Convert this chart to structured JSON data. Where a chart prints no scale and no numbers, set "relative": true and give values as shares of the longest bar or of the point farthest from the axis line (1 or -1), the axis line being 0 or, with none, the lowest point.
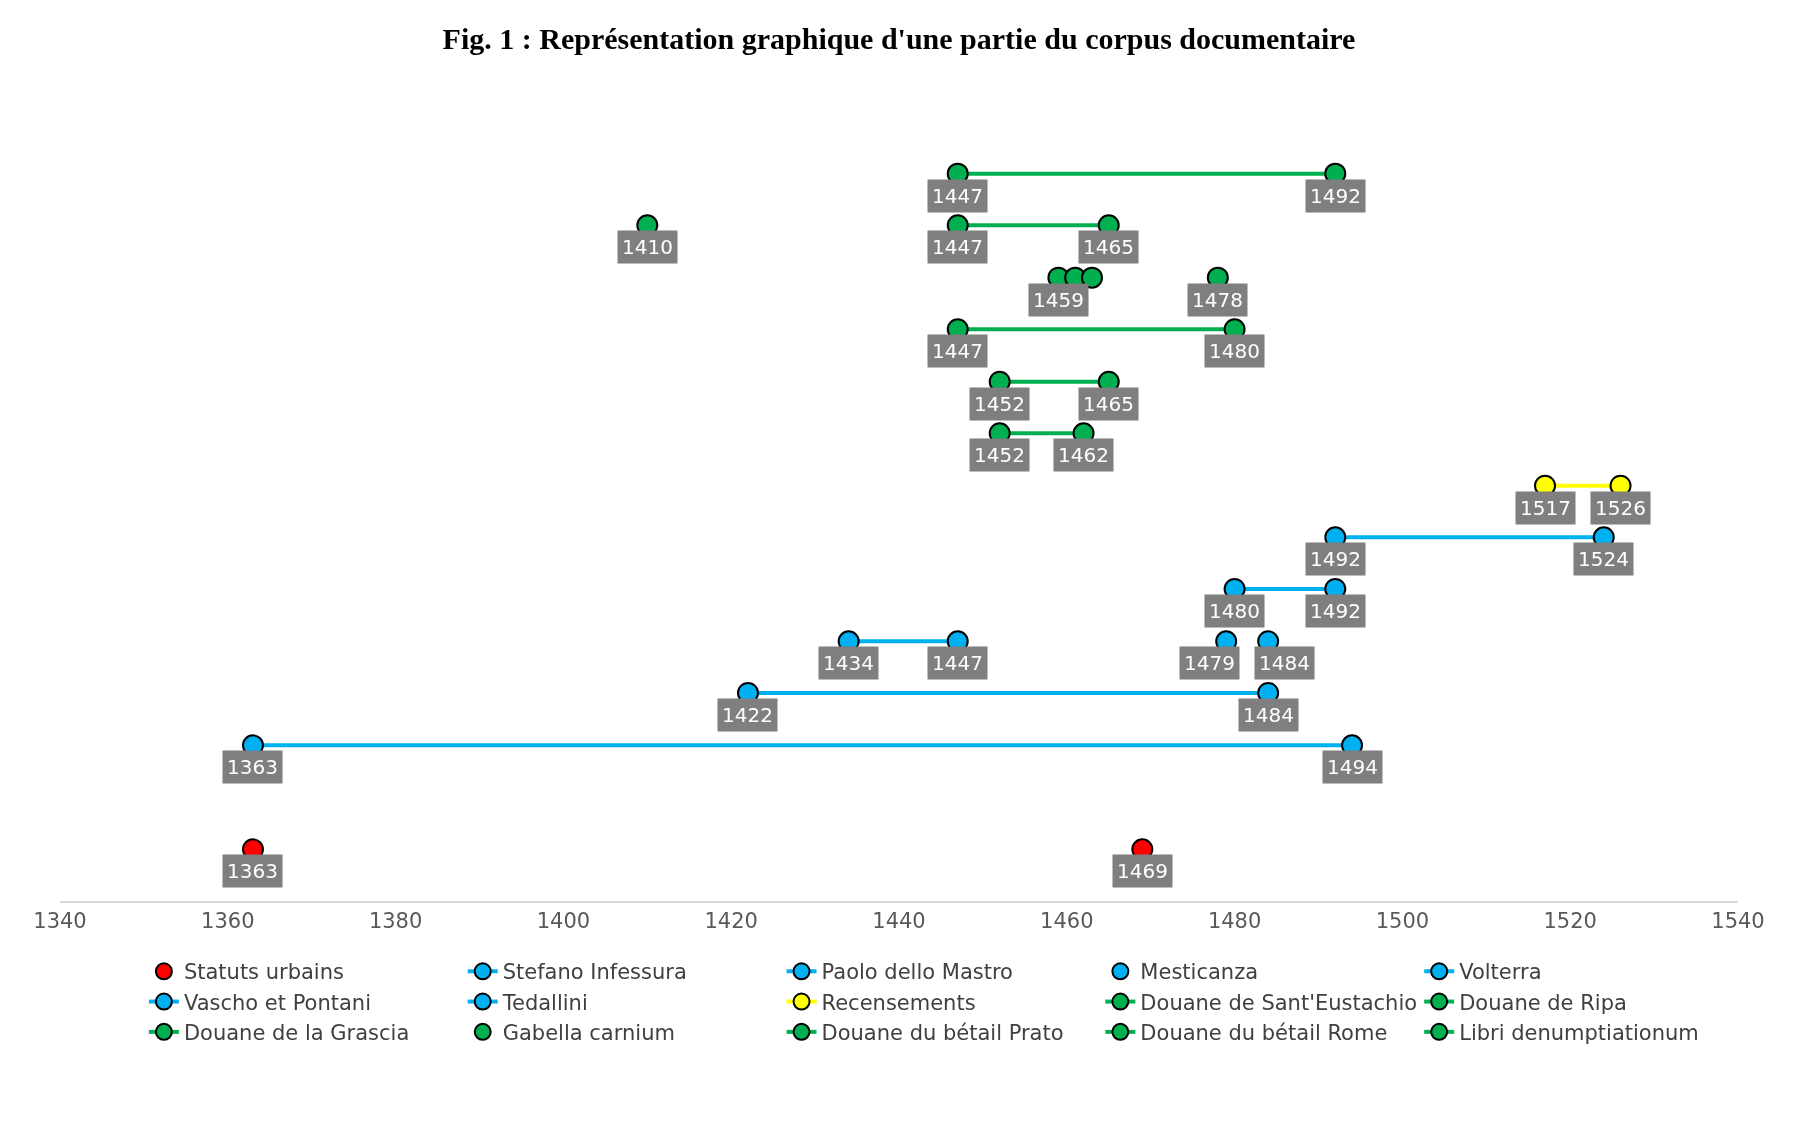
{
  "chart_data": {
    "type": "scatter",
    "title": "Fig. 1 : Représentation graphique d'une partie du corpus documentaire",
    "relative": true,
    "xlim": [
      1340,
      1540
    ],
    "xticks": [
      1340,
      1360,
      1380,
      1400,
      1420,
      1440,
      1460,
      1480,
      1500,
      1520,
      1540
    ],
    "grid": false,
    "legend": "bottom",
    "marker": "circle",
    "line_style": "solid",
    "tick_labels": "x",
    "series": [
      {
        "name": "Statuts urbains",
        "color": "#ff0000",
        "x": [
          1363,
          1469
        ],
        "values": [
          0.071,
          0.071
        ]
      },
      {
        "name": "Stefano Infessura",
        "type": "line",
        "color": "#00b0f0",
        "x": [
          1363,
          1494
        ],
        "values": [
          0.214,
          0.214
        ]
      },
      {
        "name": "Paolo dello Mastro",
        "type": "line",
        "color": "#00b0f0",
        "x": [
          1422,
          1484
        ],
        "values": [
          0.286,
          0.286
        ]
      },
      {
        "name": "Mesticanza",
        "color": "#00b0f0",
        "x": [
          1479,
          1484
        ],
        "values": [
          0.357,
          0.357
        ]
      },
      {
        "name": "Volterra",
        "type": "line",
        "color": "#00b0f0",
        "x": [
          1434,
          1447
        ],
        "values": [
          0.357,
          0.357
        ]
      },
      {
        "name": "Vascho et Pontani",
        "type": "line",
        "color": "#00b0f0",
        "x": [
          1480,
          1492
        ],
        "values": [
          0.429,
          0.429
        ]
      },
      {
        "name": "Tedallini",
        "type": "line",
        "color": "#00b0f0",
        "x": [
          1492,
          1524
        ],
        "values": [
          0.5,
          0.5
        ]
      },
      {
        "name": "Recensements",
        "type": "line",
        "color": "#ffff00",
        "x": [
          1517,
          1526
        ],
        "values": [
          0.571,
          0.571
        ]
      },
      {
        "name": "Douane de Sant'Eustachio",
        "type": "line",
        "color": "#00b050",
        "x": [
          1452,
          1462
        ],
        "values": [
          0.643,
          0.643
        ]
      },
      {
        "name": "Douane de Ripa",
        "type": "line",
        "color": "#00b050",
        "x": [
          1452,
          1465
        ],
        "values": [
          0.714,
          0.714
        ]
      },
      {
        "name": "Douane de la Grascia",
        "type": "line",
        "color": "#00b050",
        "x": [
          1447,
          1480
        ],
        "values": [
          0.786,
          0.786
        ]
      },
      {
        "name": "Gabella carnium",
        "color": "#00b050",
        "x": [
          1410,
          1459,
          1461,
          1463,
          1478
        ],
        "values": [
          0.929,
          0.857,
          0.857,
          0.857,
          0.857
        ]
      },
      {
        "name": "Douane du bétail Prato",
        "type": "line",
        "color": "#00b050",
        "x": [
          1447,
          1465
        ],
        "values": [
          0.929,
          0.929
        ]
      },
      {
        "name": "Douane du bétail Rome",
        "type": "line",
        "color": "#00b050",
        "x": [
          1447,
          1492
        ],
        "values": [
          1,
          1
        ]
      },
      {
        "name": "Libri denumptiationum",
        "type": "line",
        "color": "#00b050"
      }
    ],
    "annotations": [
      {
        "text": "1363",
        "x": 1363,
        "y": 0.071
      },
      {
        "text": "1469",
        "x": 1469,
        "y": 0.071
      },
      {
        "text": "1363",
        "x": 1363,
        "y": 0.214
      },
      {
        "text": "1494",
        "x": 1494,
        "y": 0.214
      },
      {
        "text": "1422",
        "x": 1422,
        "y": 0.286
      },
      {
        "text": "1484",
        "x": 1484,
        "y": 0.286
      },
      {
        "text": "1479",
        "x": 1479,
        "y": 0.357
      },
      {
        "text": "1484",
        "x": 1484,
        "y": 0.357
      },
      {
        "text": "1434",
        "x": 1434,
        "y": 0.357
      },
      {
        "text": "1447",
        "x": 1447,
        "y": 0.357
      },
      {
        "text": "1480",
        "x": 1480,
        "y": 0.429
      },
      {
        "text": "1492",
        "x": 1492,
        "y": 0.429
      },
      {
        "text": "1492",
        "x": 1492,
        "y": 0.5
      },
      {
        "text": "1524",
        "x": 1524,
        "y": 0.5
      },
      {
        "text": "1517",
        "x": 1517,
        "y": 0.571
      },
      {
        "text": "1526",
        "x": 1526,
        "y": 0.571
      },
      {
        "text": "1452",
        "x": 1452,
        "y": 0.643
      },
      {
        "text": "1462",
        "x": 1462,
        "y": 0.643
      },
      {
        "text": "1452",
        "x": 1452,
        "y": 0.714
      },
      {
        "text": "1465",
        "x": 1465,
        "y": 0.714
      },
      {
        "text": "1447",
        "x": 1447,
        "y": 0.786
      },
      {
        "text": "1480",
        "x": 1480,
        "y": 0.786
      },
      {
        "text": "1410",
        "x": 1410,
        "y": 0.929
      },
      {
        "text": "1459",
        "x": 1459,
        "y": 0.857
      },
      {
        "text": "1478",
        "x": 1478,
        "y": 0.857
      },
      {
        "text": "1447",
        "x": 1447,
        "y": 0.929
      },
      {
        "text": "1465",
        "x": 1465,
        "y": 0.929
      },
      {
        "text": "1447",
        "x": 1447,
        "y": 1
      },
      {
        "text": "1492",
        "x": 1492,
        "y": 1
      }
    ]
  }
}
